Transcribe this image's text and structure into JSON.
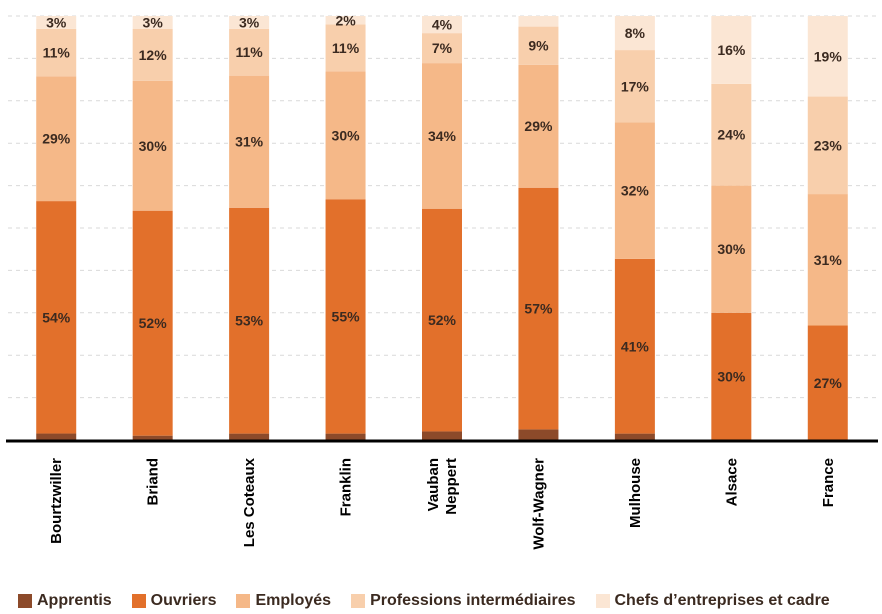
{
  "chart_data": {
    "type": "bar",
    "stacked": true,
    "categories": [
      "Bourtzwiller",
      "Briand",
      "Les Coteaux",
      "Franklin",
      "Vauban\nNeppert",
      "Wolf-Wagner",
      "Mulhouse",
      "Alsace",
      "France"
    ],
    "ylim": [
      0,
      100
    ],
    "grid": true,
    "legend_position": "bottom",
    "series": [
      {
        "name": "Apprentis",
        "color": "#8c4a2a",
        "values": [
          1.5,
          1,
          1.5,
          1.5,
          2,
          2.5,
          1.5,
          0,
          0
        ],
        "labels": [
          "",
          "",
          "",
          "",
          "",
          "",
          "",
          "",
          ""
        ]
      },
      {
        "name": "Ouvriers",
        "color": "#e2702b",
        "values": [
          54,
          52,
          53,
          55,
          52,
          57,
          41,
          30,
          27
        ],
        "labels": [
          "54%",
          "52%",
          "53%",
          "55%",
          "52%",
          "57%",
          "41%",
          "30%",
          "27%"
        ]
      },
      {
        "name": "Employés",
        "color": "#f5b888",
        "values": [
          29,
          30,
          31,
          30,
          34,
          29,
          32,
          30,
          31
        ],
        "labels": [
          "29%",
          "30%",
          "31%",
          "30%",
          "34%",
          "29%",
          "32%",
          "30%",
          "31%"
        ]
      },
      {
        "name": "Professions intermédiaires",
        "color": "#f8cfac",
        "values": [
          11,
          12,
          11,
          11,
          7,
          9,
          17,
          24,
          23
        ],
        "labels": [
          "11%",
          "12%",
          "11%",
          "11%",
          "7%",
          "9%",
          "17%",
          "24%",
          "23%"
        ]
      },
      {
        "name": "Chefs d’entreprises et cadre",
        "color": "#fbe6d4",
        "values": [
          3,
          3,
          3,
          2,
          4,
          2.5,
          8,
          16,
          19
        ],
        "labels": [
          "3%",
          "3%",
          "3%",
          "2%",
          "4%",
          "",
          "8%",
          "16%",
          "19%"
        ]
      }
    ]
  }
}
